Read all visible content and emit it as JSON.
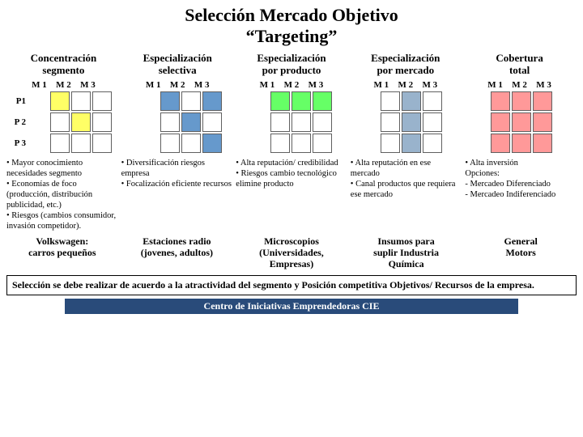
{
  "title_line1": "Selección Mercado Objetivo",
  "title_line2": "“Targeting”",
  "col_labels": [
    "M 1",
    "M 2",
    "M 3"
  ],
  "row_labels": [
    "P1",
    "P 2",
    "P 3"
  ],
  "colors": {
    "empty": "#ffffff",
    "yellow": "#ffff66",
    "blue": "#6699cc",
    "green": "#66ff66",
    "grayblue": "#99b3cc",
    "red": "#ff9999",
    "border": "#606060"
  },
  "strategies": [
    {
      "heading": "Concentración\nsegmento",
      "grid": [
        [
          "yellow",
          "empty",
          "empty"
        ],
        [
          "empty",
          "yellow",
          "empty"
        ],
        [
          "empty",
          "empty",
          "empty"
        ]
      ],
      "bullets": "• Mayor conocimiento necesidades segmento\n• Economías de foco (producción, distribución publicidad, etc.)\n• Riesgos (cambios consumidor, invasión competidor).",
      "example": "Volkswagen:\ncarros pequeños"
    },
    {
      "heading": "Especialización\nselectiva",
      "grid": [
        [
          "blue",
          "empty",
          "blue"
        ],
        [
          "empty",
          "blue",
          "empty"
        ],
        [
          "empty",
          "empty",
          "blue"
        ]
      ],
      "bullets": "• Diversificación riesgos empresa\n• Focalización eficiente recursos",
      "example": "Estaciones radio\n(jovenes, adultos)"
    },
    {
      "heading": "Especialización\npor producto",
      "grid": [
        [
          "green",
          "green",
          "green"
        ],
        [
          "empty",
          "empty",
          "empty"
        ],
        [
          "empty",
          "empty",
          "empty"
        ]
      ],
      "bullets": "• Alta reputación/ credibilidad\n• Riesgos cambio tecnológico elimine producto",
      "example": "Microscopios\n(Universidades,\nEmpresas)"
    },
    {
      "heading": "Especialización\npor mercado",
      "grid": [
        [
          "empty",
          "grayblue",
          "empty"
        ],
        [
          "empty",
          "grayblue",
          "empty"
        ],
        [
          "empty",
          "grayblue",
          "empty"
        ]
      ],
      "bullets": "• Alta reputación en ese mercado\n• Canal productos que requiera ese mercado",
      "example": "Insumos para\nsuplir Industria\nQuímica"
    },
    {
      "heading": "Cobertura\ntotal",
      "grid": [
        [
          "red",
          "red",
          "red"
        ],
        [
          "red",
          "red",
          "red"
        ],
        [
          "red",
          "red",
          "red"
        ]
      ],
      "bullets": "• Alta inversión\nOpciones:\n- Mercadeo Diferenciado\n- Mercadeo Indiferenciado",
      "example": "General\nMotors"
    }
  ],
  "summary": "Selección se debe realizar de acuerdo a la atractividad del segmento y Posición competitiva Objetivos/ Recursos de la empresa.",
  "footer": "Centro de Iniciativas Emprendedoras CIE"
}
